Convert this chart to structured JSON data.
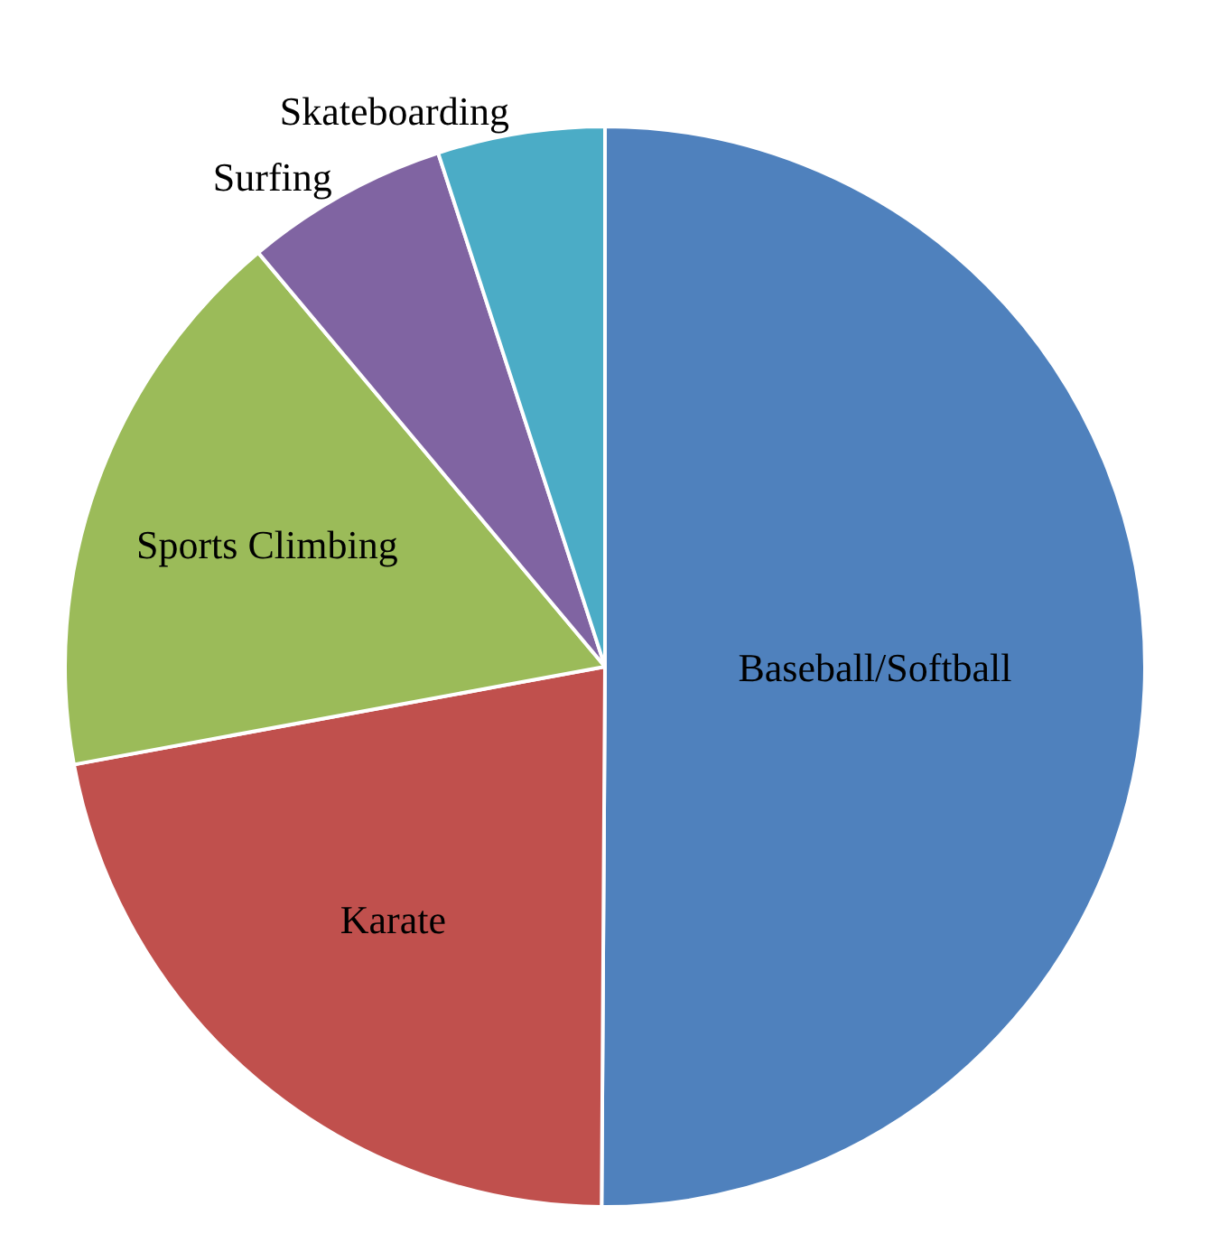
{
  "chart_data": {
    "type": "pie",
    "categories": [
      "Baseball/Softball",
      "Karate",
      "Sports Climbing",
      "Surfing",
      "Skateboarding"
    ],
    "values": [
      50.1,
      22,
      16.8,
      6.1,
      5
    ],
    "colors": [
      "#4f81bd",
      "#c0504d",
      "#9bbb59",
      "#8064a2",
      "#4bacc6"
    ],
    "legend": false
  }
}
